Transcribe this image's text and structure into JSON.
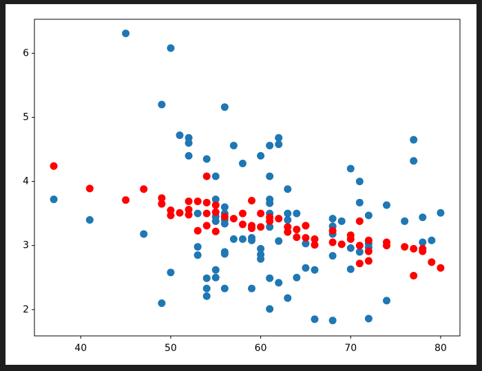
{
  "chart_data": {
    "type": "scatter",
    "xlim": [
      34.85,
      82.15
    ],
    "ylim": [
      1.59,
      6.53
    ],
    "xticks": [
      40,
      50,
      60,
      70,
      80
    ],
    "yticks": [
      2,
      3,
      4,
      5,
      6
    ],
    "series": [
      {
        "color": "#1f77b4",
        "x": [
          45,
          50,
          49,
          56,
          51,
          52,
          52,
          52,
          57,
          54,
          58,
          60,
          61,
          62,
          62,
          61,
          55,
          63,
          70,
          71,
          77,
          77,
          37,
          41,
          47,
          55,
          56,
          56,
          56,
          56,
          55,
          55,
          53,
          61,
          61,
          61,
          61,
          63,
          64,
          63,
          65,
          68,
          69,
          68,
          68,
          71,
          72,
          74,
          76,
          78,
          80,
          78,
          79,
          57,
          58,
          59,
          59,
          60,
          60,
          60,
          62,
          65,
          56,
          56,
          53,
          53,
          70,
          71,
          72,
          72,
          68,
          70,
          65,
          66,
          50,
          55,
          55,
          54,
          61,
          62,
          64,
          54,
          54,
          56,
          59,
          63,
          49,
          61,
          74,
          66,
          68,
          72
        ],
        "values": [
          6.31,
          6.08,
          5.2,
          5.16,
          4.72,
          4.68,
          4.6,
          4.4,
          4.56,
          4.35,
          4.28,
          4.4,
          4.56,
          4.68,
          4.58,
          4.08,
          4.08,
          3.88,
          4.2,
          4.0,
          4.65,
          4.32,
          3.72,
          3.4,
          3.18,
          3.72,
          3.6,
          3.5,
          3.4,
          3.34,
          3.45,
          3.38,
          3.5,
          3.72,
          3.66,
          3.5,
          3.29,
          3.5,
          3.5,
          3.4,
          3.31,
          3.42,
          3.38,
          3.3,
          3.18,
          3.67,
          3.47,
          3.63,
          3.38,
          3.44,
          3.51,
          3.05,
          3.08,
          3.1,
          3.1,
          3.12,
          3.08,
          2.95,
          2.86,
          2.79,
          3.07,
          3.03,
          2.9,
          2.87,
          2.98,
          2.85,
          2.96,
          2.9,
          3.03,
          2.97,
          2.84,
          2.63,
          2.65,
          2.62,
          2.58,
          2.62,
          2.5,
          2.49,
          2.49,
          2.42,
          2.5,
          2.33,
          2.21,
          2.33,
          2.33,
          2.18,
          2.1,
          2.01,
          2.14,
          1.85,
          1.83,
          1.86
        ]
      },
      {
        "color": "#ff0000",
        "x": [
          37,
          41,
          45,
          47,
          49,
          49,
          50,
          50,
          51,
          52,
          52,
          52,
          53,
          53,
          54,
          54,
          54,
          54,
          55,
          55,
          55,
          56,
          57,
          58,
          58,
          59,
          59,
          59,
          60,
          60,
          61,
          61,
          62,
          63,
          63,
          64,
          64,
          65,
          65,
          66,
          66,
          68,
          68,
          69,
          70,
          70,
          71,
          71,
          71,
          72,
          72,
          72,
          74,
          74,
          76,
          77,
          77,
          78,
          78,
          79,
          80
        ],
        "values": [
          4.24,
          3.89,
          3.71,
          3.88,
          3.74,
          3.65,
          3.55,
          3.47,
          3.51,
          3.69,
          3.56,
          3.48,
          3.69,
          3.23,
          4.08,
          3.67,
          3.5,
          3.31,
          3.63,
          3.52,
          3.22,
          3.45,
          3.42,
          3.5,
          3.33,
          3.7,
          3.31,
          3.27,
          3.5,
          3.29,
          3.44,
          3.38,
          3.42,
          3.29,
          3.21,
          3.25,
          3.13,
          3.31,
          3.12,
          3.1,
          3.01,
          3.23,
          3.05,
          3.02,
          3.16,
          3.1,
          3.38,
          3.0,
          2.72,
          3.08,
          2.91,
          2.76,
          3.05,
          3.0,
          2.98,
          2.95,
          2.53,
          2.95,
          2.91,
          2.74,
          2.65
        ]
      }
    ]
  }
}
